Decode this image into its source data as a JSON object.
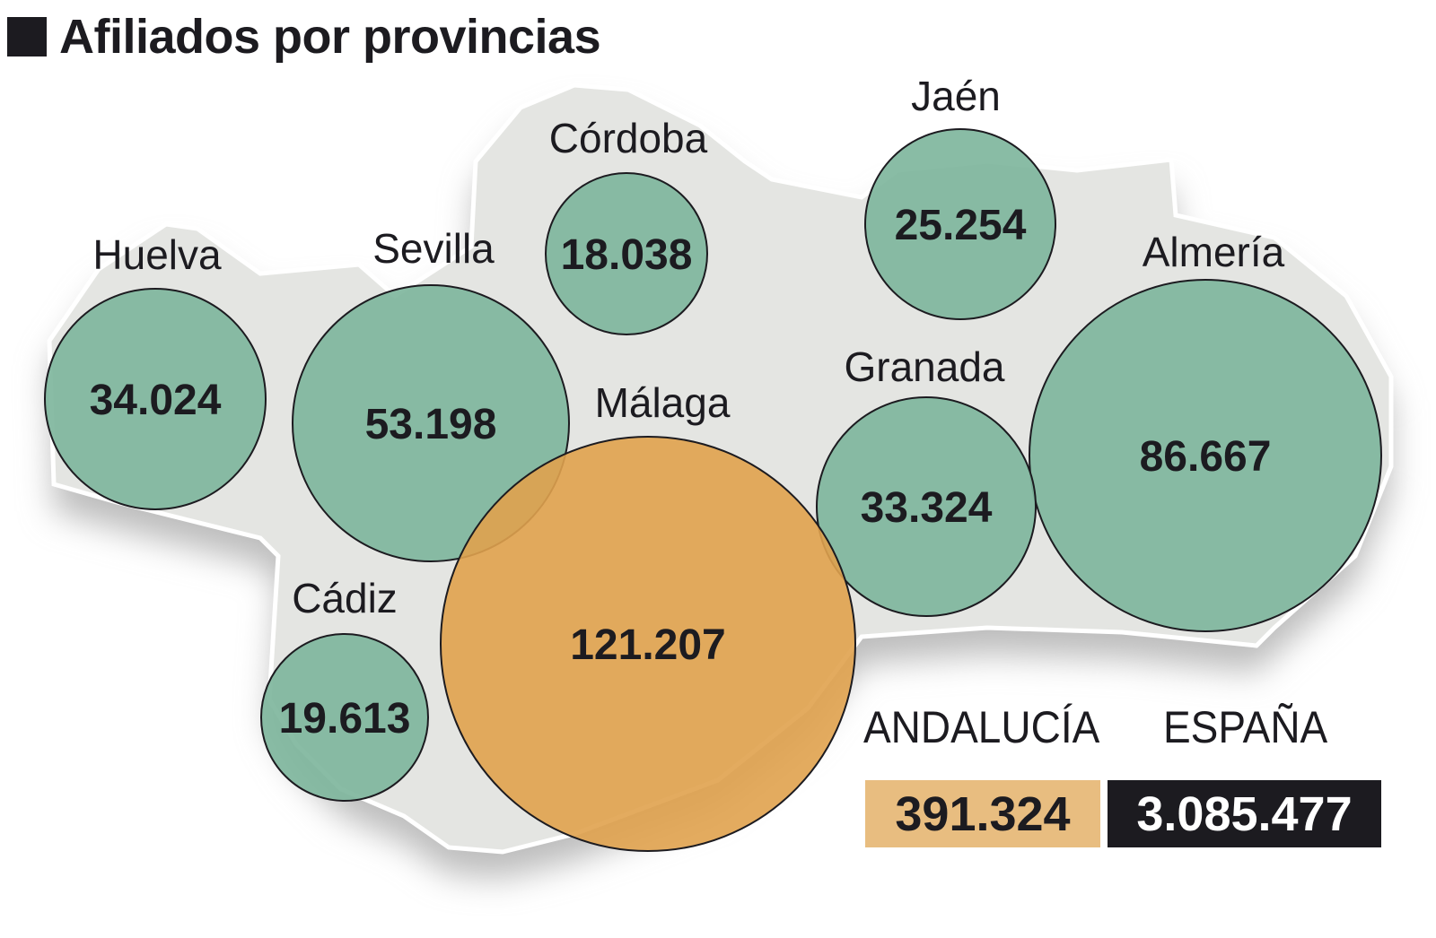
{
  "title": "Afiliados por provincias",
  "colors": {
    "province": "#7fb69d",
    "highlight": "#e0a24e",
    "map": "#e4e5e2",
    "andalucia_box": "#e8bd80",
    "espana_box": "#1c1b20"
  },
  "chart_data": {
    "type": "bubble-map",
    "title": "Afiliados por provincias",
    "provinces": [
      {
        "name": "Huelva",
        "value": 34024,
        "label": "34.024",
        "highlight": false
      },
      {
        "name": "Sevilla",
        "value": 53198,
        "label": "53.198",
        "highlight": false
      },
      {
        "name": "Córdoba",
        "value": 18038,
        "label": "18.038",
        "highlight": false
      },
      {
        "name": "Jaén",
        "value": 25254,
        "label": "25.254",
        "highlight": false
      },
      {
        "name": "Almería",
        "value": 86667,
        "label": "86.667",
        "highlight": false
      },
      {
        "name": "Granada",
        "value": 33324,
        "label": "33.324",
        "highlight": false
      },
      {
        "name": "Cádiz",
        "value": 19613,
        "label": "19.613",
        "highlight": false
      },
      {
        "name": "Málaga",
        "value": 121207,
        "label": "121.207",
        "highlight": true
      }
    ]
  },
  "totals": {
    "andalucia": {
      "label": "ANDALUCÍA",
      "value": "391.324"
    },
    "espana": {
      "label": "ESPAÑA",
      "value": "3.085.477"
    }
  }
}
